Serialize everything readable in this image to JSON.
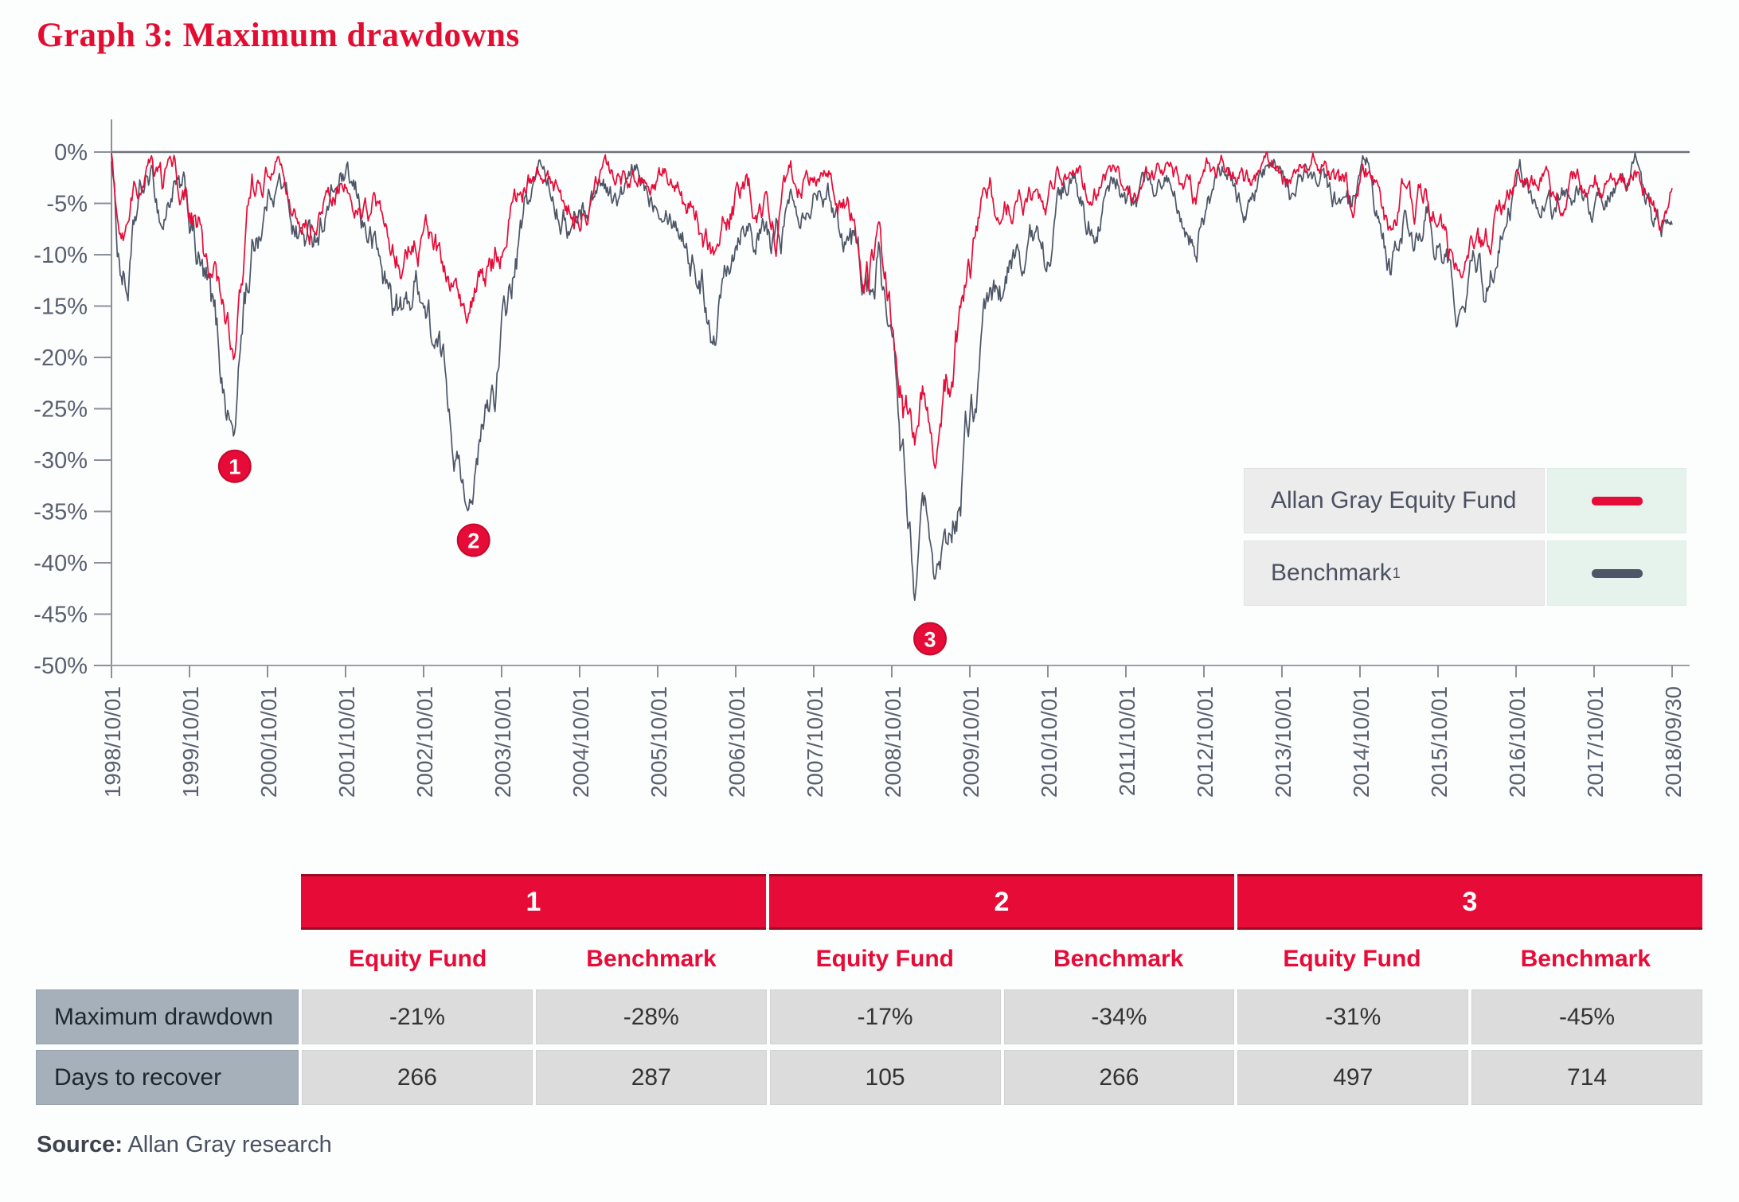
{
  "title": "Graph 3: Maximum drawdowns",
  "colors": {
    "accent_red": "#e70b37",
    "benchmark_gray": "#4d5666",
    "axis_text": "#59606f"
  },
  "legend": {
    "items": [
      {
        "label": "Allan Gray Equity Fund",
        "superscript": "",
        "color": "#e70b37"
      },
      {
        "label": "Benchmark",
        "superscript": "1",
        "color": "#4d5666"
      }
    ]
  },
  "chart_data": {
    "type": "line",
    "title": "Maximum drawdowns of Allan Gray Equity Fund vs Benchmark",
    "ylim": [
      -50,
      0
    ],
    "grid": false,
    "legend_position": "right-middle-overlay",
    "yticks": [
      "0%",
      "-5%",
      "-10%",
      "-15%",
      "-20%",
      "-25%",
      "-30%",
      "-35%",
      "-40%",
      "-45%",
      "-50%"
    ],
    "xticklabels": [
      "1998/10/01",
      "1999/10/01",
      "2000/10/01",
      "2001/10/01",
      "2002/10/01",
      "2003/10/01",
      "2004/10/01",
      "2005/10/01",
      "2006/10/01",
      "2007/10/01",
      "2008/10/01",
      "2009/10/01",
      "2010/10/01",
      "2011/10/01",
      "2012/10/01",
      "2013/10/01",
      "2014/10/01",
      "2015/10/01",
      "2016/10/01",
      "2017/10/01",
      "2018/09/30"
    ],
    "x_years_range": [
      0,
      20
    ],
    "markers": [
      {
        "label": "1",
        "t": 1.58,
        "value": -30.6
      },
      {
        "label": "2",
        "t": 4.64,
        "value": -37.8
      },
      {
        "label": "3",
        "t": 10.49,
        "value": -47.4
      }
    ],
    "series": [
      {
        "name": "Benchmark",
        "color": "#4d5666",
        "noise_seed": 1234,
        "max_drawdowns": {
          "1": -28,
          "2": -34,
          "3": -45
        },
        "control_points": [
          [
            0,
            -0.5,
            0.8
          ],
          [
            0.08,
            -9,
            2.5
          ],
          [
            0.2,
            -13,
            2.5
          ],
          [
            0.35,
            -6,
            2
          ],
          [
            0.5,
            -3,
            1.5
          ],
          [
            0.65,
            -7,
            2
          ],
          [
            0.8,
            -3,
            1.5
          ],
          [
            1.0,
            -7,
            2.5
          ],
          [
            1.25,
            -16,
            3
          ],
          [
            1.45,
            -24,
            2.5
          ],
          [
            1.58,
            -27.5,
            1.2
          ],
          [
            1.7,
            -14,
            3
          ],
          [
            1.85,
            -8,
            2.5
          ],
          [
            2.0,
            -4,
            1.5
          ],
          [
            2.15,
            -2,
            1.2
          ],
          [
            2.35,
            -7,
            2
          ],
          [
            2.55,
            -9,
            2
          ],
          [
            2.75,
            -5,
            1.8
          ],
          [
            2.95,
            -3,
            1.5
          ],
          [
            3.15,
            -6,
            2
          ],
          [
            3.35,
            -9,
            2.2
          ],
          [
            3.55,
            -14,
            2.5
          ],
          [
            3.75,
            -16,
            2
          ],
          [
            3.95,
            -12,
            2.5
          ],
          [
            4.15,
            -19,
            2.5
          ],
          [
            4.35,
            -25,
            2.5
          ],
          [
            4.55,
            -33.5,
            1
          ],
          [
            4.7,
            -30,
            2.5
          ],
          [
            4.9,
            -23,
            3
          ],
          [
            5.1,
            -15,
            2.5
          ],
          [
            5.3,
            -7,
            2
          ],
          [
            5.5,
            -2,
            1
          ],
          [
            5.7,
            -4,
            1.5
          ],
          [
            5.9,
            -7,
            2
          ],
          [
            6.1,
            -5,
            1.8
          ],
          [
            6.3,
            -2.5,
            1.2
          ],
          [
            6.5,
            -5,
            1.6
          ],
          [
            6.7,
            -3,
            1.3
          ],
          [
            6.9,
            -4,
            1.5
          ],
          [
            7.1,
            -3,
            1.3
          ],
          [
            7.35,
            -7,
            2
          ],
          [
            7.6,
            -13,
            2.5
          ],
          [
            7.75,
            -16.5,
            1.5
          ],
          [
            7.9,
            -8,
            2.5
          ],
          [
            8.1,
            -4,
            1.8
          ],
          [
            8.3,
            -7,
            2
          ],
          [
            8.5,
            -10,
            2.3
          ],
          [
            8.7,
            -5,
            2
          ],
          [
            8.9,
            -3,
            1.4
          ],
          [
            9.1,
            -2,
            1.2
          ],
          [
            9.3,
            -5,
            1.8
          ],
          [
            9.5,
            -8,
            2.4
          ],
          [
            9.7,
            -13,
            2.6
          ],
          [
            9.85,
            -9,
            2.2
          ],
          [
            10.0,
            -20,
            3
          ],
          [
            10.15,
            -31,
            3
          ],
          [
            10.3,
            -42,
            2
          ],
          [
            10.42,
            -36,
            2.5
          ],
          [
            10.55,
            -44.5,
            0.8
          ],
          [
            10.7,
            -39,
            2.5
          ],
          [
            10.85,
            -33,
            3
          ],
          [
            11.0,
            -26,
            3
          ],
          [
            11.2,
            -20,
            2.8
          ],
          [
            11.4,
            -15,
            2.5
          ],
          [
            11.6,
            -11,
            2.2
          ],
          [
            11.8,
            -9,
            2
          ],
          [
            11.95,
            -11,
            2
          ],
          [
            12.1,
            -6,
            1.8
          ],
          [
            12.3,
            -3,
            1.3
          ],
          [
            12.5,
            -7,
            1.8
          ],
          [
            12.7,
            -5,
            1.6
          ],
          [
            12.9,
            -3,
            1.3
          ],
          [
            13.1,
            -6,
            1.8
          ],
          [
            13.3,
            -3.5,
            1.4
          ],
          [
            13.5,
            -2,
            1.1
          ],
          [
            13.7,
            -4.5,
            1.5
          ],
          [
            13.9,
            -7,
            1.8
          ],
          [
            14.1,
            -4,
            1.5
          ],
          [
            14.3,
            -2.5,
            1.2
          ],
          [
            14.5,
            -5,
            1.6
          ],
          [
            14.7,
            -3,
            1.3
          ],
          [
            14.9,
            -2,
            1.1
          ],
          [
            15.1,
            -4.5,
            1.5
          ],
          [
            15.3,
            -3,
            1.3
          ],
          [
            15.5,
            -2,
            1.1
          ],
          [
            15.7,
            -5,
            1.6
          ],
          [
            15.9,
            -7,
            1.8
          ],
          [
            16.1,
            -4,
            1.5
          ],
          [
            16.25,
            -9,
            2
          ],
          [
            16.4,
            -13,
            1.8
          ],
          [
            16.55,
            -7,
            2
          ],
          [
            16.7,
            -9,
            2.2
          ],
          [
            16.85,
            -6,
            1.8
          ],
          [
            17.0,
            -8,
            2.2
          ],
          [
            17.15,
            -12,
            2.2
          ],
          [
            17.3,
            -15.5,
            1.2
          ],
          [
            17.45,
            -11,
            2.2
          ],
          [
            17.6,
            -13,
            2
          ],
          [
            17.75,
            -8,
            2
          ],
          [
            17.9,
            -5,
            1.6
          ],
          [
            18.05,
            -3,
            1.3
          ],
          [
            18.2,
            -5,
            1.6
          ],
          [
            18.35,
            -3,
            1.3
          ],
          [
            18.5,
            -6,
            1.8
          ],
          [
            18.65,
            -4,
            1.5
          ],
          [
            18.8,
            -3,
            1.3
          ],
          [
            18.95,
            -6,
            1.8
          ],
          [
            19.1,
            -4,
            1.5
          ],
          [
            19.25,
            -3,
            1.3
          ],
          [
            19.4,
            -5.5,
            1.7
          ],
          [
            19.55,
            -4,
            1.4
          ],
          [
            19.7,
            -6,
            1.7
          ],
          [
            19.85,
            -8.5,
            1.6
          ],
          [
            20,
            -7,
            0.9
          ]
        ]
      },
      {
        "name": "Allan Gray Equity Fund",
        "color": "#e70b37",
        "noise_seed": 987,
        "max_drawdowns": {
          "1": -21,
          "2": -17,
          "3": -31
        },
        "control_points": [
          [
            0,
            -0.5,
            0.7
          ],
          [
            0.08,
            -7,
            2
          ],
          [
            0.2,
            -10,
            2
          ],
          [
            0.35,
            -4,
            1.6
          ],
          [
            0.5,
            -2,
            1.2
          ],
          [
            0.65,
            -5,
            1.7
          ],
          [
            0.8,
            -2,
            1.2
          ],
          [
            1.0,
            -5,
            2
          ],
          [
            1.25,
            -12,
            2.5
          ],
          [
            1.45,
            -18,
            2
          ],
          [
            1.58,
            -20.5,
            1
          ],
          [
            1.7,
            -10,
            2.5
          ],
          [
            1.85,
            -5,
            2
          ],
          [
            2.0,
            -2.5,
            1.2
          ],
          [
            2.15,
            -1.5,
            1
          ],
          [
            2.35,
            -5,
            1.7
          ],
          [
            2.55,
            -6,
            1.7
          ],
          [
            2.75,
            -3.5,
            1.5
          ],
          [
            2.95,
            -2,
            1.2
          ],
          [
            3.15,
            -4,
            1.5
          ],
          [
            3.35,
            -6,
            1.8
          ],
          [
            3.55,
            -9,
            2
          ],
          [
            3.75,
            -10,
            1.8
          ],
          [
            3.95,
            -8,
            2
          ],
          [
            4.15,
            -11,
            2
          ],
          [
            4.35,
            -13,
            2
          ],
          [
            4.55,
            -16.5,
            1
          ],
          [
            4.7,
            -13,
            2
          ],
          [
            4.9,
            -10,
            2.2
          ],
          [
            5.1,
            -7,
            2
          ],
          [
            5.3,
            -4,
            1.5
          ],
          [
            5.5,
            -1.5,
            0.9
          ],
          [
            5.7,
            -3,
            1.3
          ],
          [
            5.9,
            -5,
            1.6
          ],
          [
            6.1,
            -3.5,
            1.4
          ],
          [
            6.3,
            -1.5,
            1
          ],
          [
            6.5,
            -3.5,
            1.4
          ],
          [
            6.7,
            -2,
            1.1
          ],
          [
            6.9,
            -3,
            1.3
          ],
          [
            7.1,
            -2,
            1.1
          ],
          [
            7.35,
            -5,
            1.7
          ],
          [
            7.6,
            -9,
            2.2
          ],
          [
            7.75,
            -12,
            1.5
          ],
          [
            7.9,
            -6,
            2
          ],
          [
            8.1,
            -3,
            1.5
          ],
          [
            8.3,
            -5,
            1.7
          ],
          [
            8.5,
            -7.5,
            2
          ],
          [
            8.7,
            -4,
            1.7
          ],
          [
            8.9,
            -2,
            1.2
          ],
          [
            9.1,
            -1.5,
            1
          ],
          [
            9.3,
            -4,
            1.6
          ],
          [
            9.5,
            -6.5,
            2
          ],
          [
            9.7,
            -11,
            2.4
          ],
          [
            9.85,
            -7,
            2
          ],
          [
            10.0,
            -16,
            2.8
          ],
          [
            10.15,
            -24,
            2.8
          ],
          [
            10.3,
            -28,
            2.2
          ],
          [
            10.42,
            -22,
            2.5
          ],
          [
            10.55,
            -30.5,
            0.8
          ],
          [
            10.7,
            -24,
            2.8
          ],
          [
            10.85,
            -18,
            2.8
          ],
          [
            11.0,
            -12,
            2.5
          ],
          [
            11.2,
            -8,
            2.2
          ],
          [
            11.4,
            -5,
            1.8
          ],
          [
            11.6,
            -4,
            1.6
          ],
          [
            11.8,
            -3.5,
            1.5
          ],
          [
            11.95,
            -5,
            1.6
          ],
          [
            12.1,
            -3,
            1.3
          ],
          [
            12.3,
            -1.5,
            1
          ],
          [
            12.5,
            -4.5,
            1.5
          ],
          [
            12.7,
            -3,
            1.3
          ],
          [
            12.9,
            -2,
            1.1
          ],
          [
            13.1,
            -4,
            1.4
          ],
          [
            13.3,
            -2,
            1.1
          ],
          [
            13.5,
            -1.5,
            1
          ],
          [
            13.7,
            -3,
            1.3
          ],
          [
            13.9,
            -4.5,
            1.5
          ],
          [
            14.1,
            -2.5,
            1.2
          ],
          [
            14.3,
            -1.5,
            1
          ],
          [
            14.5,
            -3.5,
            1.4
          ],
          [
            14.7,
            -2,
            1.1
          ],
          [
            14.9,
            -1.5,
            1
          ],
          [
            15.1,
            -3,
            1.3
          ],
          [
            15.3,
            -2,
            1.1
          ],
          [
            15.5,
            -1.5,
            1
          ],
          [
            15.7,
            -3.5,
            1.4
          ],
          [
            15.9,
            -5,
            1.6
          ],
          [
            16.1,
            -3,
            1.3
          ],
          [
            16.25,
            -6.5,
            1.7
          ],
          [
            16.4,
            -9,
            1.6
          ],
          [
            16.55,
            -5,
            1.7
          ],
          [
            16.7,
            -7,
            1.9
          ],
          [
            16.85,
            -4.5,
            1.6
          ],
          [
            17.0,
            -6,
            1.9
          ],
          [
            17.15,
            -9.5,
            1.9
          ],
          [
            17.3,
            -12,
            1.1
          ],
          [
            17.45,
            -8,
            1.9
          ],
          [
            17.6,
            -10,
            1.8
          ],
          [
            17.75,
            -6,
            1.7
          ],
          [
            17.9,
            -3.5,
            1.4
          ],
          [
            18.05,
            -2,
            1.1
          ],
          [
            18.2,
            -3.5,
            1.4
          ],
          [
            18.35,
            -2,
            1.1
          ],
          [
            18.5,
            -4.5,
            1.5
          ],
          [
            18.65,
            -3,
            1.3
          ],
          [
            18.8,
            -2,
            1.1
          ],
          [
            18.95,
            -4.5,
            1.5
          ],
          [
            19.1,
            -3,
            1.3
          ],
          [
            19.25,
            -2,
            1.1
          ],
          [
            19.4,
            -4,
            1.4
          ],
          [
            19.55,
            -3,
            1.2
          ],
          [
            19.7,
            -4.5,
            1.4
          ],
          [
            19.85,
            -6.5,
            1.4
          ],
          [
            20,
            -2.5,
            0.8
          ]
        ]
      }
    ]
  },
  "table": {
    "group_headers": [
      "1",
      "2",
      "3"
    ],
    "col_headers": [
      "Equity Fund",
      "Benchmark",
      "Equity Fund",
      "Benchmark",
      "Equity Fund",
      "Benchmark"
    ],
    "rows": [
      {
        "label": "Maximum drawdown",
        "values": [
          "-21%",
          "-28%",
          "-17%",
          "-34%",
          "-31%",
          "-45%"
        ]
      },
      {
        "label": "Days to recover",
        "values": [
          "266",
          "287",
          "105",
          "266",
          "497",
          "714"
        ]
      }
    ]
  },
  "source": {
    "label": "Source:",
    "text": " Allan Gray research"
  }
}
